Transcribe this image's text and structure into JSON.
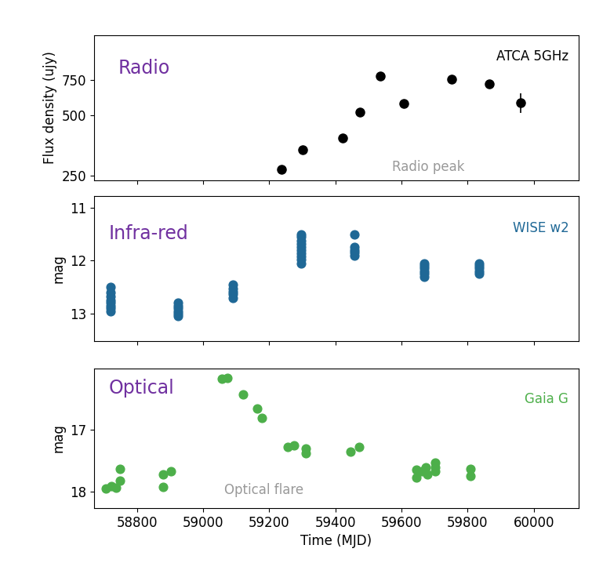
{
  "chart_data": [
    {
      "type": "scatter",
      "title": "Radio",
      "subtitle": "ATCA 5GHz",
      "annotations": [
        "Radio peak"
      ],
      "y_label": "Flux density (ujy)",
      "log": "y",
      "tick_labels": "y",
      "marker": "o",
      "color": "#000000",
      "x": [
        59238,
        59302,
        59421,
        59473,
        59535,
        59606,
        59751,
        59865,
        59960
      ],
      "values": [
        269,
        335,
        385,
        517,
        785,
        570,
        755,
        716,
        580
      ],
      "errors": [
        10,
        15,
        15,
        15,
        35,
        12,
        12,
        15,
        65
      ],
      "xlim": [
        58670,
        60135
      ],
      "xticks": [
        58800,
        59000,
        59200,
        59400,
        59600,
        59800,
        60000
      ],
      "ylim": [
        237,
        1260
      ],
      "yticks": [
        250,
        500,
        750
      ]
    },
    {
      "type": "scatter",
      "title": "Infra-red",
      "subtitle": "WISE w2",
      "y_label": "mag",
      "tick_labels": "y",
      "marker": "o",
      "color": "#1f6896",
      "x": [
        58719,
        58719,
        58719,
        58719,
        58719,
        58719,
        58719,
        58719,
        58923,
        58923,
        58923,
        58923,
        58923,
        58923,
        59089,
        59089,
        59089,
        59089,
        59089,
        59296,
        59296,
        59296,
        59296,
        59296,
        59296,
        59296,
        59296,
        59296,
        59296,
        59457,
        59457,
        59457,
        59457,
        59457,
        59668,
        59668,
        59668,
        59668,
        59668,
        59668,
        59834,
        59834,
        59834,
        59834,
        59834
      ],
      "values": [
        12.5,
        12.6,
        12.68,
        12.75,
        12.8,
        12.85,
        12.9,
        12.95,
        12.8,
        12.85,
        12.9,
        12.95,
        13.0,
        13.05,
        12.45,
        12.52,
        12.58,
        12.63,
        12.7,
        11.5,
        11.55,
        11.62,
        11.68,
        11.75,
        11.8,
        11.86,
        11.92,
        11.98,
        12.05,
        11.5,
        11.75,
        11.8,
        11.85,
        11.9,
        12.05,
        12.1,
        12.15,
        12.2,
        12.25,
        12.3,
        12.05,
        12.1,
        12.15,
        12.2,
        12.25
      ],
      "xlim": [
        58670,
        60135
      ],
      "xticks": [
        58800,
        59000,
        59200,
        59400,
        59600,
        59800,
        60000
      ],
      "ylim": [
        13.52,
        10.78
      ],
      "yticks": [
        11,
        12,
        13
      ]
    },
    {
      "type": "scatter",
      "title": "Optical",
      "subtitle": "Gaia G",
      "annotations": [
        "Optical flare"
      ],
      "x_label": "Time (MJD)",
      "y_label": "mag",
      "marker": "o",
      "color": "#4daf4a",
      "x": [
        58705,
        58722,
        58736,
        58748,
        58748,
        58878,
        58878,
        58902,
        59056,
        59073,
        59120,
        59163,
        59177,
        59255,
        59274,
        59310,
        59310,
        59445,
        59471,
        59644,
        59644,
        59661,
        59673,
        59678,
        59701,
        59701,
        59701,
        59808,
        59808
      ],
      "values": [
        17.95,
        17.91,
        17.94,
        17.82,
        17.63,
        17.72,
        17.93,
        17.67,
        16.18,
        16.16,
        16.43,
        16.66,
        16.81,
        17.28,
        17.25,
        17.3,
        17.38,
        17.35,
        17.28,
        17.65,
        17.78,
        17.67,
        17.61,
        17.73,
        17.67,
        17.61,
        17.53,
        17.75,
        17.64
      ],
      "xlim": [
        58670,
        60135
      ],
      "xticks": [
        58800,
        59000,
        59200,
        59400,
        59600,
        59800,
        60000
      ],
      "ylim": [
        18.27,
        16.01
      ],
      "yticks": [
        17,
        18
      ]
    }
  ]
}
